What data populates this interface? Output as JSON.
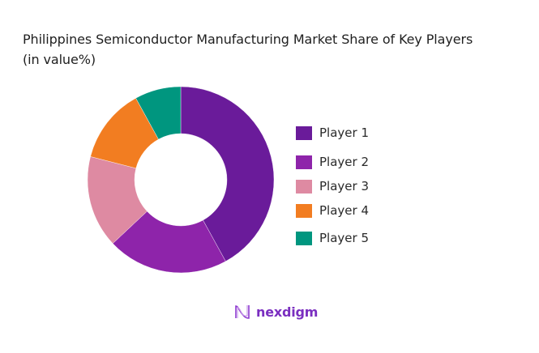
{
  "title": {
    "line1": "Philippines Semiconductor Manufacturing Market Share of Key Players",
    "line2": "(in value%)"
  },
  "legend": [
    {
      "label": "Player 1",
      "color": "#6a1b9a"
    },
    {
      "label": "Player 2",
      "color": "#8e24aa"
    },
    {
      "label": "Player 3",
      "color": "#de8aa2"
    },
    {
      "label": "Player 4",
      "color": "#f27d21"
    },
    {
      "label": "Player 5",
      "color": "#00967f"
    }
  ],
  "logo": {
    "text": "nexdigm",
    "color": "#7a2ec0"
  },
  "chart_data": {
    "type": "pie",
    "variant": "donut",
    "title": "Philippines Semiconductor Manufacturing Market Share of Key Players (in value%)",
    "categories": [
      "Player 1",
      "Player 2",
      "Player 3",
      "Player 4",
      "Player 5"
    ],
    "values": [
      42,
      21,
      16,
      13,
      8
    ],
    "colors": [
      "#6a1b9a",
      "#8e24aa",
      "#de8aa2",
      "#f27d21",
      "#00967f"
    ],
    "unit": "%",
    "start_angle": "12 o'clock, clockwise",
    "legend_position": "right"
  }
}
